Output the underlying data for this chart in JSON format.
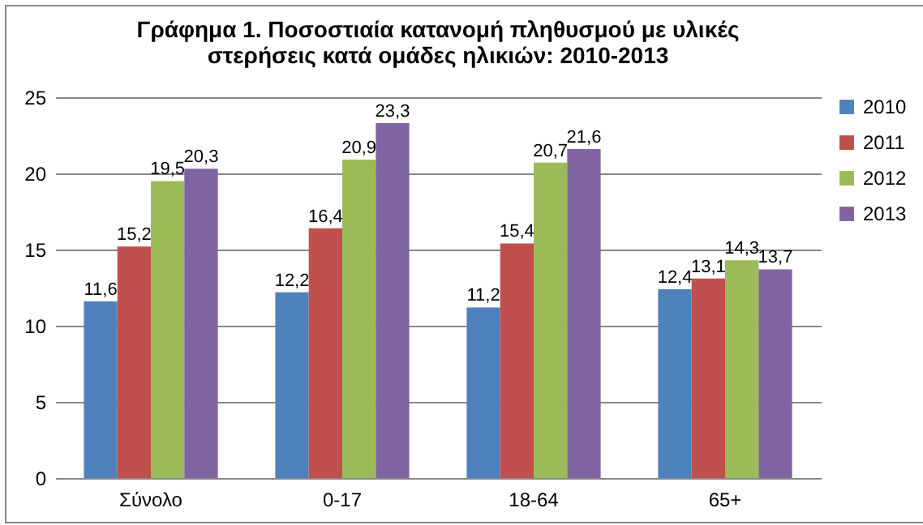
{
  "chart_data": {
    "type": "bar",
    "title": "Γράφημα 1. Ποσοστιαία κατανομή πληθυσμού με υλικές\nστερήσεις κατά ομάδες ηλικιών: 2010-2013",
    "categories": [
      "Σύνολο",
      "0-17",
      "18-64",
      "65+"
    ],
    "series": [
      {
        "name": "2010",
        "color": "#4f81bd",
        "values": [
          11.6,
          12.2,
          11.2,
          12.4
        ],
        "value_labels": [
          "11,6",
          "12,2",
          "11,2",
          "12,4"
        ]
      },
      {
        "name": "2011",
        "color": "#c0504d",
        "values": [
          15.2,
          16.4,
          15.4,
          13.1
        ],
        "value_labels": [
          "15,2",
          "16,4",
          "15,4",
          "13,1"
        ]
      },
      {
        "name": "2012",
        "color": "#9bbb59",
        "values": [
          19.5,
          20.9,
          20.7,
          14.3
        ],
        "value_labels": [
          "19,5",
          "20,9",
          "20,7",
          "14,3"
        ]
      },
      {
        "name": "2013",
        "color": "#8064a2",
        "values": [
          20.3,
          23.3,
          21.6,
          13.7
        ],
        "value_labels": [
          "20,3",
          "23,3",
          "21,6",
          "13,7"
        ]
      }
    ],
    "ylim": [
      0,
      25
    ],
    "yticks": [
      0,
      5,
      10,
      15,
      20,
      25
    ],
    "grid": "y",
    "legend": "right"
  }
}
